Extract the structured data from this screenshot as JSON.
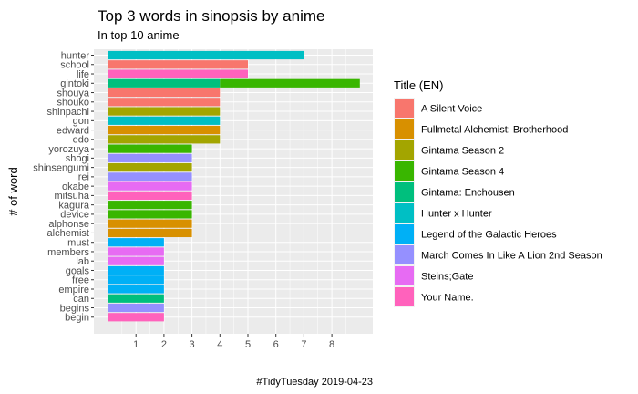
{
  "chart_data": {
    "type": "bar",
    "orientation": "horizontal",
    "title": "Top 3 words in sinopsis by anime",
    "subtitle": "In top 10 anime",
    "xlabel": "",
    "ylabel": "# of word",
    "caption": "#TidyTuesday 2019-04-23",
    "xlim": [
      0,
      9.3
    ],
    "x_ticks": [
      1,
      2,
      3,
      4,
      5,
      6,
      7,
      8
    ],
    "grid": true,
    "legend": {
      "title": "Title (EN)",
      "placement": "right"
    },
    "series": [
      {
        "name": "A Silent Voice",
        "color": "#F8766D"
      },
      {
        "name": "Fullmetal Alchemist: Brotherhood",
        "color": "#D89000"
      },
      {
        "name": "Gintama Season 2",
        "color": "#A3A500"
      },
      {
        "name": "Gintama Season 4",
        "color": "#39B600"
      },
      {
        "name": "Gintama: Enchousen",
        "color": "#00BF7D"
      },
      {
        "name": "Hunter x Hunter",
        "color": "#00BFC4"
      },
      {
        "name": "Legend of the Galactic Heroes",
        "color": "#00B0F6"
      },
      {
        "name": "March Comes In Like A Lion 2nd Season",
        "color": "#9590FF"
      },
      {
        "name": "Steins;Gate",
        "color": "#E76BF3"
      },
      {
        "name": "Your Name.",
        "color": "#FF62BC"
      }
    ],
    "categories": [
      "hunter",
      "school",
      "life",
      "gintoki",
      "shouya",
      "shouko",
      "shinpachi",
      "gon",
      "edward",
      "edo",
      "yorozuya",
      "shogi",
      "shinsengumi",
      "rei",
      "okabe",
      "mitsuha",
      "kagura",
      "device",
      "alphonse",
      "alchemist",
      "must",
      "members",
      "lab",
      "goals",
      "free",
      "empire",
      "can",
      "begins",
      "begin"
    ],
    "bars": [
      {
        "word": "hunter",
        "series": "Hunter x Hunter",
        "start": 0,
        "end": 7
      },
      {
        "word": "school",
        "series": "A Silent Voice",
        "start": 0,
        "end": 5
      },
      {
        "word": "life",
        "series": "Your Name.",
        "start": 0,
        "end": 5
      },
      {
        "word": "gintoki",
        "series": "Gintama: Enchousen",
        "start": 0,
        "end": 4
      },
      {
        "word": "gintoki",
        "series": "Gintama Season 4",
        "start": 4,
        "end": 9
      },
      {
        "word": "shouya",
        "series": "A Silent Voice",
        "start": 0,
        "end": 4
      },
      {
        "word": "shouko",
        "series": "A Silent Voice",
        "start": 0,
        "end": 4
      },
      {
        "word": "shinpachi",
        "series": "Gintama Season 2",
        "start": 0,
        "end": 4
      },
      {
        "word": "gon",
        "series": "Hunter x Hunter",
        "start": 0,
        "end": 4
      },
      {
        "word": "edward",
        "series": "Fullmetal Alchemist: Brotherhood",
        "start": 0,
        "end": 4
      },
      {
        "word": "edo",
        "series": "Gintama Season 2",
        "start": 0,
        "end": 4
      },
      {
        "word": "yorozuya",
        "series": "Gintama Season 4",
        "start": 0,
        "end": 3
      },
      {
        "word": "shogi",
        "series": "March Comes In Like A Lion 2nd Season",
        "start": 0,
        "end": 3
      },
      {
        "word": "shinsengumi",
        "series": "Gintama Season 2",
        "start": 0,
        "end": 3
      },
      {
        "word": "rei",
        "series": "March Comes In Like A Lion 2nd Season",
        "start": 0,
        "end": 3
      },
      {
        "word": "okabe",
        "series": "Steins;Gate",
        "start": 0,
        "end": 3
      },
      {
        "word": "mitsuha",
        "series": "Your Name.",
        "start": 0,
        "end": 3
      },
      {
        "word": "kagura",
        "series": "Gintama Season 4",
        "start": 0,
        "end": 3
      },
      {
        "word": "device",
        "series": "Gintama Season 4",
        "start": 0,
        "end": 3
      },
      {
        "word": "alphonse",
        "series": "Fullmetal Alchemist: Brotherhood",
        "start": 0,
        "end": 3
      },
      {
        "word": "alchemist",
        "series": "Fullmetal Alchemist: Brotherhood",
        "start": 0,
        "end": 3
      },
      {
        "word": "must",
        "series": "Legend of the Galactic Heroes",
        "start": 0,
        "end": 2
      },
      {
        "word": "members",
        "series": "Steins;Gate",
        "start": 0,
        "end": 2
      },
      {
        "word": "lab",
        "series": "Steins;Gate",
        "start": 0,
        "end": 2
      },
      {
        "word": "goals",
        "series": "Legend of the Galactic Heroes",
        "start": 0,
        "end": 2
      },
      {
        "word": "free",
        "series": "Legend of the Galactic Heroes",
        "start": 0,
        "end": 2
      },
      {
        "word": "empire",
        "series": "Legend of the Galactic Heroes",
        "start": 0,
        "end": 2
      },
      {
        "word": "can",
        "series": "Gintama: Enchousen",
        "start": 0,
        "end": 2
      },
      {
        "word": "begins",
        "series": "March Comes In Like A Lion 2nd Season",
        "start": 0,
        "end": 2
      },
      {
        "word": "begin",
        "series": "Your Name.",
        "start": 0,
        "end": 2
      }
    ]
  }
}
